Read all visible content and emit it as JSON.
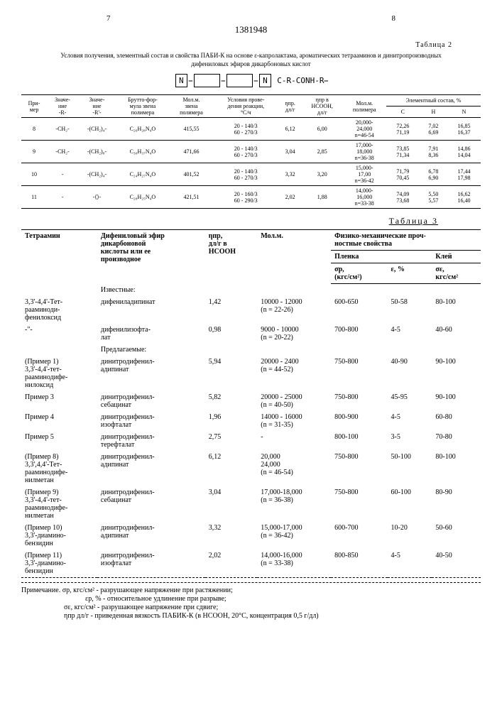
{
  "page_left": "7",
  "page_right": "8",
  "doc_number": "1381948",
  "table2_label": "Таблица 2",
  "caption": "Условия получения, элементный состав и свойства ПАБИ-К на основе ε-капролактама, ароматических тетрааминов и динитропроизводных дифениловых эфиров дикарбоновых кислот",
  "structure": "⟨⎯N⟩ ⎯⟨ ⟩⎯ N⟨ C-R-CONH-R⎯",
  "t2_headers": {
    "c1": "При-\nмер",
    "c2": "Значе-\nние\n-R-",
    "c3": "Значе-\nние\n-R'-",
    "c4": "Брутто-фор-\nмула звена\nполимера",
    "c5": "Мол.м.\nзвена\nполимера",
    "c6": "Условия прове-\nдения реакции,\n°С/ч",
    "c7": "ηпр.\nдл/г",
    "c8": "ηпр в\nHCOOH,\nдл/г",
    "c9": "Мол.м.\nполимера",
    "c10": "Элементный состав, %",
    "c10a": "C",
    "c10b": "H",
    "c10c": "N"
  },
  "t2_rows": [
    {
      "n": "8",
      "r": "-CH₂-",
      "rp": "-(CH₂)₄-",
      "bf": "C₂₆H₂₈N₄O",
      "mm": "415,55",
      "cond": "20 - 140/3\n60 - 270/3",
      "eta": "6,12",
      "eta2": "6,00",
      "molw": "20,000-\n24,000\nn=46-54",
      "c": "72,26\n71,19",
      "h": "7,02\n6,69",
      "nn": "16,85\n16,37"
    },
    {
      "n": "9",
      "r": "-CH₂-",
      "rp": "-(CH₂)₈-",
      "bf": "C₃₀H₃₇N₄O",
      "mm": "471,66",
      "cond": "20 - 140/3\n60 - 270/3",
      "eta": "3,04",
      "eta2": "2,85",
      "molw": "17,000-\n18,000\nn=36-38",
      "c": "73,85\n71,34",
      "h": "7,91\n8,36",
      "nn": "14,86\n14,04"
    },
    {
      "n": "10",
      "r": "-",
      "rp": "-(CH₂)₄-",
      "bf": "C₂₄H₂₇N₄O",
      "mm": "401,52",
      "cond": "20 - 140/3\n60 - 270/3",
      "eta": "3,32",
      "eta2": "3,20",
      "molw": "15,000-\n17,00\nn=36-42",
      "c": "71,79\n70,45",
      "h": "6,78\n6,90",
      "nn": "17,44\n17,98"
    },
    {
      "n": "11",
      "r": "-",
      "rp": "-⟨⟩-",
      "bf": "C₂₈H₂₅N₄O",
      "mm": "421,51",
      "cond": "20 - 160/3\n60 - 290/3",
      "eta": "2,02",
      "eta2": "1,88",
      "molw": "14,000-\n16,000\nn=33-38",
      "c": "74,09\n73,68",
      "h": "5,50\n5,57",
      "nn": "16,62\n16,40"
    }
  ],
  "table3_label": "Таблица 3",
  "t3_headers": {
    "c1": "Тетраамин",
    "c2": "Дифениловый эфир\nдикарбоновой\nкислоты или ее\nпроизводное",
    "c3": "ηпр,\nдл/г в\nHCOOH",
    "c4": "Мол.м.",
    "c5": "Физико-механические проч-\nностные свойства",
    "c5a": "Пленка",
    "c5b": "Клей",
    "c5a1": "σр,\n(кгс/см²)",
    "c5a2": "ε, %",
    "c5b1": "σε,\nкгс/см²"
  },
  "known_label": "Известные:",
  "proposed_label": "Предлагаемые:",
  "t3_rows": [
    {
      "ta": "3,3'-4,4'-Тет-\nрааминоди-\nфенилоксид",
      "de": "дифениладипинат",
      "eta": "1,42",
      "mm": "10000 - 12000\n(n = 22-26)",
      "sr": "600-650",
      "eps": "50-58",
      "se": "80-100"
    },
    {
      "ta": "-\"-",
      "de": "дифенилизофта-\nлат",
      "eta": "0,98",
      "mm": "9000 - 10000\n(n = 20-22)",
      "sr": "700-800",
      "eps": "4-5",
      "se": "40-60"
    },
    {
      "ta": "(Пример 1)\n3,3'-4,4'-тет-\nрааминодифе-\nнилоксид",
      "de": "динитродифенил-\nадипинат",
      "eta": "5,94",
      "mm": "20000 - 2400\n(n = 44-52)",
      "sr": "750-800",
      "eps": "40-90",
      "se": "90-100"
    },
    {
      "ta": "Пример 3",
      "de": "динитродифенил-\nсебацинат",
      "eta": "5,82",
      "mm": "20000 - 25000\n(n = 40-50)",
      "sr": "750-800",
      "eps": "45-95",
      "se": "90-100"
    },
    {
      "ta": "Пример 4",
      "de": "динитродифенил-\nизофталат",
      "eta": "1,96",
      "mm": "14000 - 16000\n(n = 31-35)",
      "sr": "800-900",
      "eps": "4-5",
      "se": "60-80"
    },
    {
      "ta": "Пример 5",
      "de": "динитродифенил-\nтерефталат",
      "eta": "2,75",
      "mm": "-",
      "sr": "800-100",
      "eps": "3-5",
      "se": "70-80"
    },
    {
      "ta": "(Пример 8)\n3,3',4,4'-Тет-\nрааминодифе-\nнилметан",
      "de": "динитродифенил-\nадипинат",
      "eta": "6,12",
      "mm": "20,000\n24,000\n(n = 46-54)",
      "sr": "750-800",
      "eps": "50-100",
      "se": "80-100"
    },
    {
      "ta": "(Пример 9)\n3,3'-4,4'-тет-\nрааминодифе-\nнилметан",
      "de": "динитродифенил-\nсебацинат",
      "eta": "3,04",
      "mm": "17,000-18,000\n(n = 36-38)",
      "sr": "750-800",
      "eps": "60-100",
      "se": "80-90"
    },
    {
      "ta": "(Пример 10)\n3,3'-диамино-\nбензидин",
      "de": "динитродифенил-\nадипинат",
      "eta": "3,32",
      "mm": "15,000-17,000\n(n = 36-42)",
      "sr": "600-700",
      "eps": "10-20",
      "se": "50-60"
    },
    {
      "ta": "(Пример 11)\n3,3'-диамино-\nбензидин",
      "de": "динитродифенил-\nизофталат",
      "eta": "2,02",
      "mm": "14,000-16,000\n(n = 33-38)",
      "sr": "800-850",
      "eps": "4-5",
      "se": "40-50"
    }
  ],
  "footnotes": {
    "l1": "Примечание. σр, кгс/см² - разрушающее напряжение при растяжении;",
    "l2": "εр, % - относительное удлинение при разрыве;",
    "l3": "σε, кгс/см² - разрушающее напряжение при сдвиге;",
    "l4": "ηпр дл/г - приведенная вязкость ПАБИК-К (в HCOOH, 20°C, концентрация 0,5 г/дл)"
  }
}
